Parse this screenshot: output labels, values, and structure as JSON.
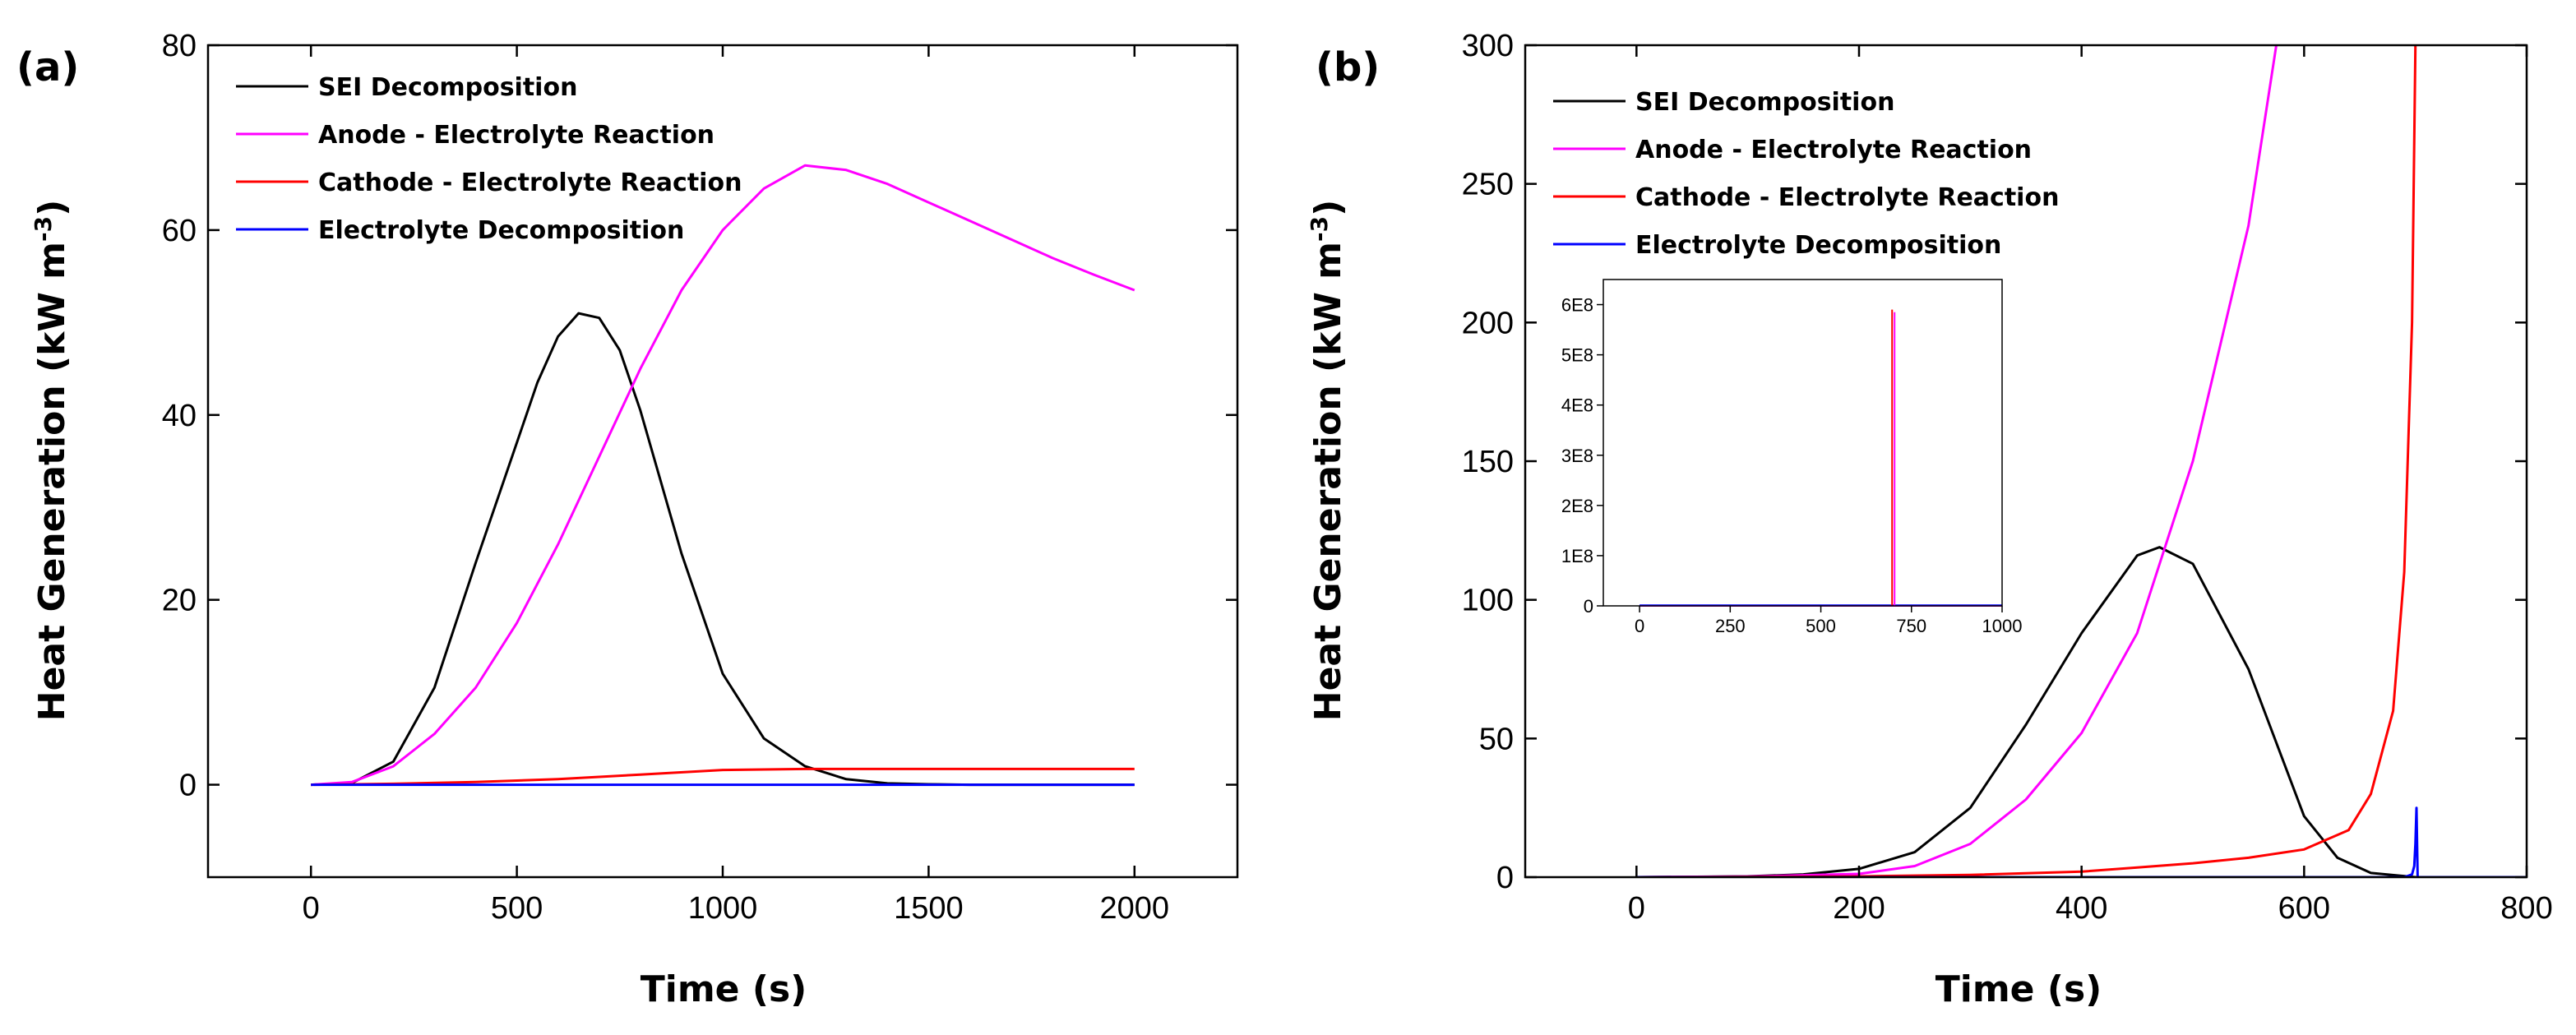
{
  "chart_data": [
    {
      "type": "line",
      "panel_label": "(a)",
      "xlabel": "Time (s)",
      "ylabel": "Heat Generation (kW m",
      "ylabel_sup": "-3",
      "ylabel_close": ")",
      "xlim": [
        -250,
        2250
      ],
      "ylim": [
        -10,
        80
      ],
      "xticks": [
        0,
        500,
        1000,
        1500,
        2000
      ],
      "yticks": [
        0,
        20,
        40,
        60,
        80
      ],
      "legend_position": "top-left",
      "series": [
        {
          "name": "SEI Decomposition",
          "color": "#000000",
          "x": [
            0,
            100,
            200,
            300,
            400,
            500,
            550,
            600,
            650,
            700,
            750,
            800,
            900,
            1000,
            1100,
            1200,
            1300,
            1400,
            1500,
            1600,
            1800,
            2000
          ],
          "y": [
            0,
            0.2,
            2.5,
            10.5,
            24,
            37,
            43.5,
            48.5,
            51,
            50.5,
            47,
            40.5,
            25,
            12,
            5,
            2,
            0.6,
            0.15,
            0.05,
            0,
            0,
            0
          ]
        },
        {
          "name": "Anode - Electrolyte Reaction",
          "color": "#ff00ff",
          "x": [
            0,
            100,
            200,
            300,
            400,
            500,
            600,
            700,
            800,
            900,
            1000,
            1100,
            1200,
            1300,
            1400,
            1500,
            1600,
            1700,
            1800,
            1900,
            2000
          ],
          "y": [
            0,
            0.3,
            2,
            5.5,
            10.5,
            17.5,
            26,
            35.5,
            45,
            53.5,
            60,
            64.5,
            67,
            66.5,
            65,
            63,
            61,
            59,
            57,
            55.2,
            53.5
          ]
        },
        {
          "name": "Cathode - Electrolyte Reaction",
          "color": "#ff0000",
          "x": [
            0,
            200,
            400,
            600,
            800,
            1000,
            1200,
            1400,
            1600,
            1800,
            2000
          ],
          "y": [
            0,
            0.1,
            0.3,
            0.6,
            1.1,
            1.6,
            1.7,
            1.7,
            1.7,
            1.7,
            1.7
          ]
        },
        {
          "name": "Electrolyte Decomposition",
          "color": "#0000ff",
          "x": [
            0,
            2000
          ],
          "y": [
            0,
            0
          ]
        }
      ]
    },
    {
      "type": "line",
      "panel_label": "(b)",
      "xlabel": "Time (s)",
      "ylabel": "Heat Generation (kW m",
      "ylabel_sup": "-3",
      "ylabel_close": ")",
      "xlim": [
        -100,
        800
      ],
      "ylim": [
        0,
        300
      ],
      "xticks": [
        0,
        200,
        400,
        600,
        800
      ],
      "yticks": [
        0,
        50,
        100,
        150,
        200,
        250,
        300
      ],
      "legend_position": "top-left",
      "series": [
        {
          "name": "SEI Decomposition",
          "color": "#000000",
          "x": [
            0,
            100,
            150,
            200,
            250,
            300,
            350,
            400,
            450,
            470,
            500,
            550,
            600,
            630,
            660,
            700,
            800
          ],
          "y": [
            0,
            0.3,
            1,
            3,
            9,
            25,
            55,
            88,
            116,
            119,
            113,
            75,
            22,
            7,
            1.5,
            0,
            0
          ]
        },
        {
          "name": "Anode - Electrolyte Reaction",
          "color": "#ff00ff",
          "x": [
            0,
            100,
            200,
            250,
            300,
            350,
            400,
            450,
            500,
            550,
            575
          ],
          "y": [
            0,
            0.2,
            1.2,
            4,
            12,
            28,
            52,
            88,
            150,
            235,
            300
          ]
        },
        {
          "name": "Cathode - Electrolyte Reaction",
          "color": "#ff0000",
          "x": [
            0,
            200,
            300,
            400,
            450,
            500,
            550,
            600,
            640,
            660,
            680,
            690,
            697,
            700
          ],
          "y": [
            0,
            0.3,
            0.8,
            2,
            3.5,
            5,
            7,
            10,
            17,
            30,
            60,
            110,
            200,
            300
          ]
        },
        {
          "name": "Electrolyte Decomposition",
          "color": "#0000ff",
          "x": [
            0,
            690,
            697,
            699,
            700,
            701,
            702,
            800
          ],
          "y": [
            0,
            0,
            1,
            4,
            12,
            25,
            0,
            0
          ]
        }
      ],
      "inset": {
        "xlim": [
          -100,
          1000
        ],
        "ylim": [
          0,
          650000000
        ],
        "xticks": [
          0,
          250,
          500,
          750,
          1000
        ],
        "yticks": [
          0,
          100000000,
          200000000,
          300000000,
          400000000,
          500000000,
          600000000
        ],
        "ytick_labels": [
          "0",
          "1E8",
          "2E8",
          "3E8",
          "4E8",
          "5E8",
          "6E8"
        ],
        "spike_x": 700,
        "spike_cathode": 590000000,
        "spike_anode": 585000000
      }
    }
  ]
}
